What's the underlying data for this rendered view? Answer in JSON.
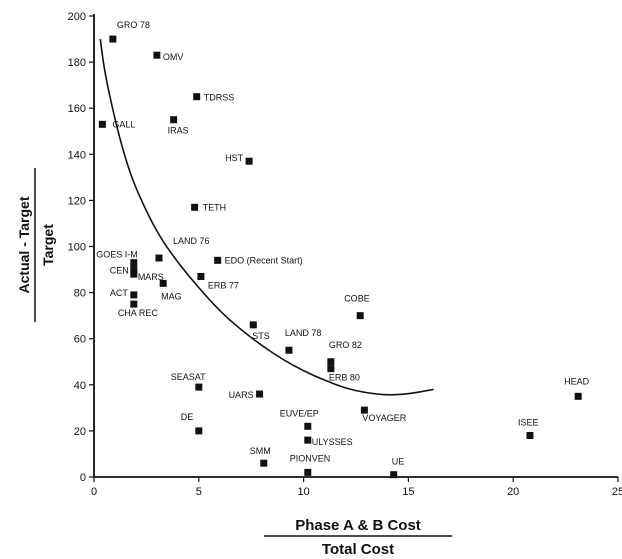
{
  "chart_data": {
    "type": "scatter",
    "title": "",
    "xlabel_numerator": "Phase A & B Cost",
    "xlabel_denominator": "Total Cost",
    "ylabel_numerator": "Actual - Target",
    "ylabel_denominator": "Target",
    "xlim": [
      0,
      25
    ],
    "ylim": [
      0,
      200
    ],
    "xticks": [
      "0",
      "5",
      "10",
      "15",
      "20",
      "25"
    ],
    "yticks": [
      "0",
      "20",
      "40",
      "60",
      "80",
      "100",
      "120",
      "140",
      "160",
      "180",
      "200"
    ],
    "grid": false,
    "points": [
      {
        "label": "GRO 78",
        "x": 0.9,
        "y": 190
      },
      {
        "label": "OMV",
        "x": 3.0,
        "y": 183
      },
      {
        "label": "TDRSS",
        "x": 4.9,
        "y": 165
      },
      {
        "label": "IRAS",
        "x": 3.8,
        "y": 155
      },
      {
        "label": "GALL",
        "x": 0.4,
        "y": 153
      },
      {
        "label": "HST",
        "x": 7.4,
        "y": 137
      },
      {
        "label": "TETH",
        "x": 4.8,
        "y": 117
      },
      {
        "label": "LAND 76",
        "x": 3.1,
        "y": 95
      },
      {
        "label": "GOES I-M",
        "x": 1.9,
        "y": 93
      },
      {
        "label": "EDO (Recent Start)",
        "x": 5.9,
        "y": 94
      },
      {
        "label": "CEN",
        "x": 1.9,
        "y": 90
      },
      {
        "label": "MARS",
        "x": 1.9,
        "y": 88
      },
      {
        "label": "ERB 77",
        "x": 5.1,
        "y": 87
      },
      {
        "label": "ACT",
        "x": 1.9,
        "y": 79
      },
      {
        "label": "MAG",
        "x": 3.3,
        "y": 84
      },
      {
        "label": "CHA REC",
        "x": 1.9,
        "y": 75
      },
      {
        "label": "COBE",
        "x": 12.7,
        "y": 70
      },
      {
        "label": "STS",
        "x": 7.6,
        "y": 66
      },
      {
        "label": "LAND 78",
        "x": 9.3,
        "y": 55
      },
      {
        "label": "GRO 82",
        "x": 11.3,
        "y": 50
      },
      {
        "label": "ERB 80",
        "x": 11.3,
        "y": 47
      },
      {
        "label": "SEASAT",
        "x": 5.0,
        "y": 39
      },
      {
        "label": "UARS",
        "x": 7.9,
        "y": 36
      },
      {
        "label": "HEAD",
        "x": 23.1,
        "y": 35
      },
      {
        "label": "EUVE/EP",
        "x": 10.2,
        "y": 22
      },
      {
        "label": "VOYAGER",
        "x": 12.9,
        "y": 29
      },
      {
        "label": "DE",
        "x": 5.0,
        "y": 20
      },
      {
        "label": "ULYSSES",
        "x": 10.2,
        "y": 16
      },
      {
        "label": "ISEE",
        "x": 20.8,
        "y": 18
      },
      {
        "label": "SMM",
        "x": 8.1,
        "y": 6
      },
      {
        "label": "PIONVEN",
        "x": 10.2,
        "y": 2
      },
      {
        "label": "UE",
        "x": 14.3,
        "y": 1
      }
    ],
    "fit_curve": {
      "x": [
        0.3,
        0.5,
        1,
        1.5,
        2,
        3,
        4,
        5,
        6,
        7,
        8,
        9,
        10,
        11,
        12,
        13,
        14,
        15,
        16.2
      ],
      "y": [
        190,
        176,
        155,
        138,
        125,
        106,
        93,
        82,
        72,
        64,
        57,
        51,
        46,
        42,
        38.5,
        36.5,
        35.5,
        36,
        38
      ]
    }
  }
}
